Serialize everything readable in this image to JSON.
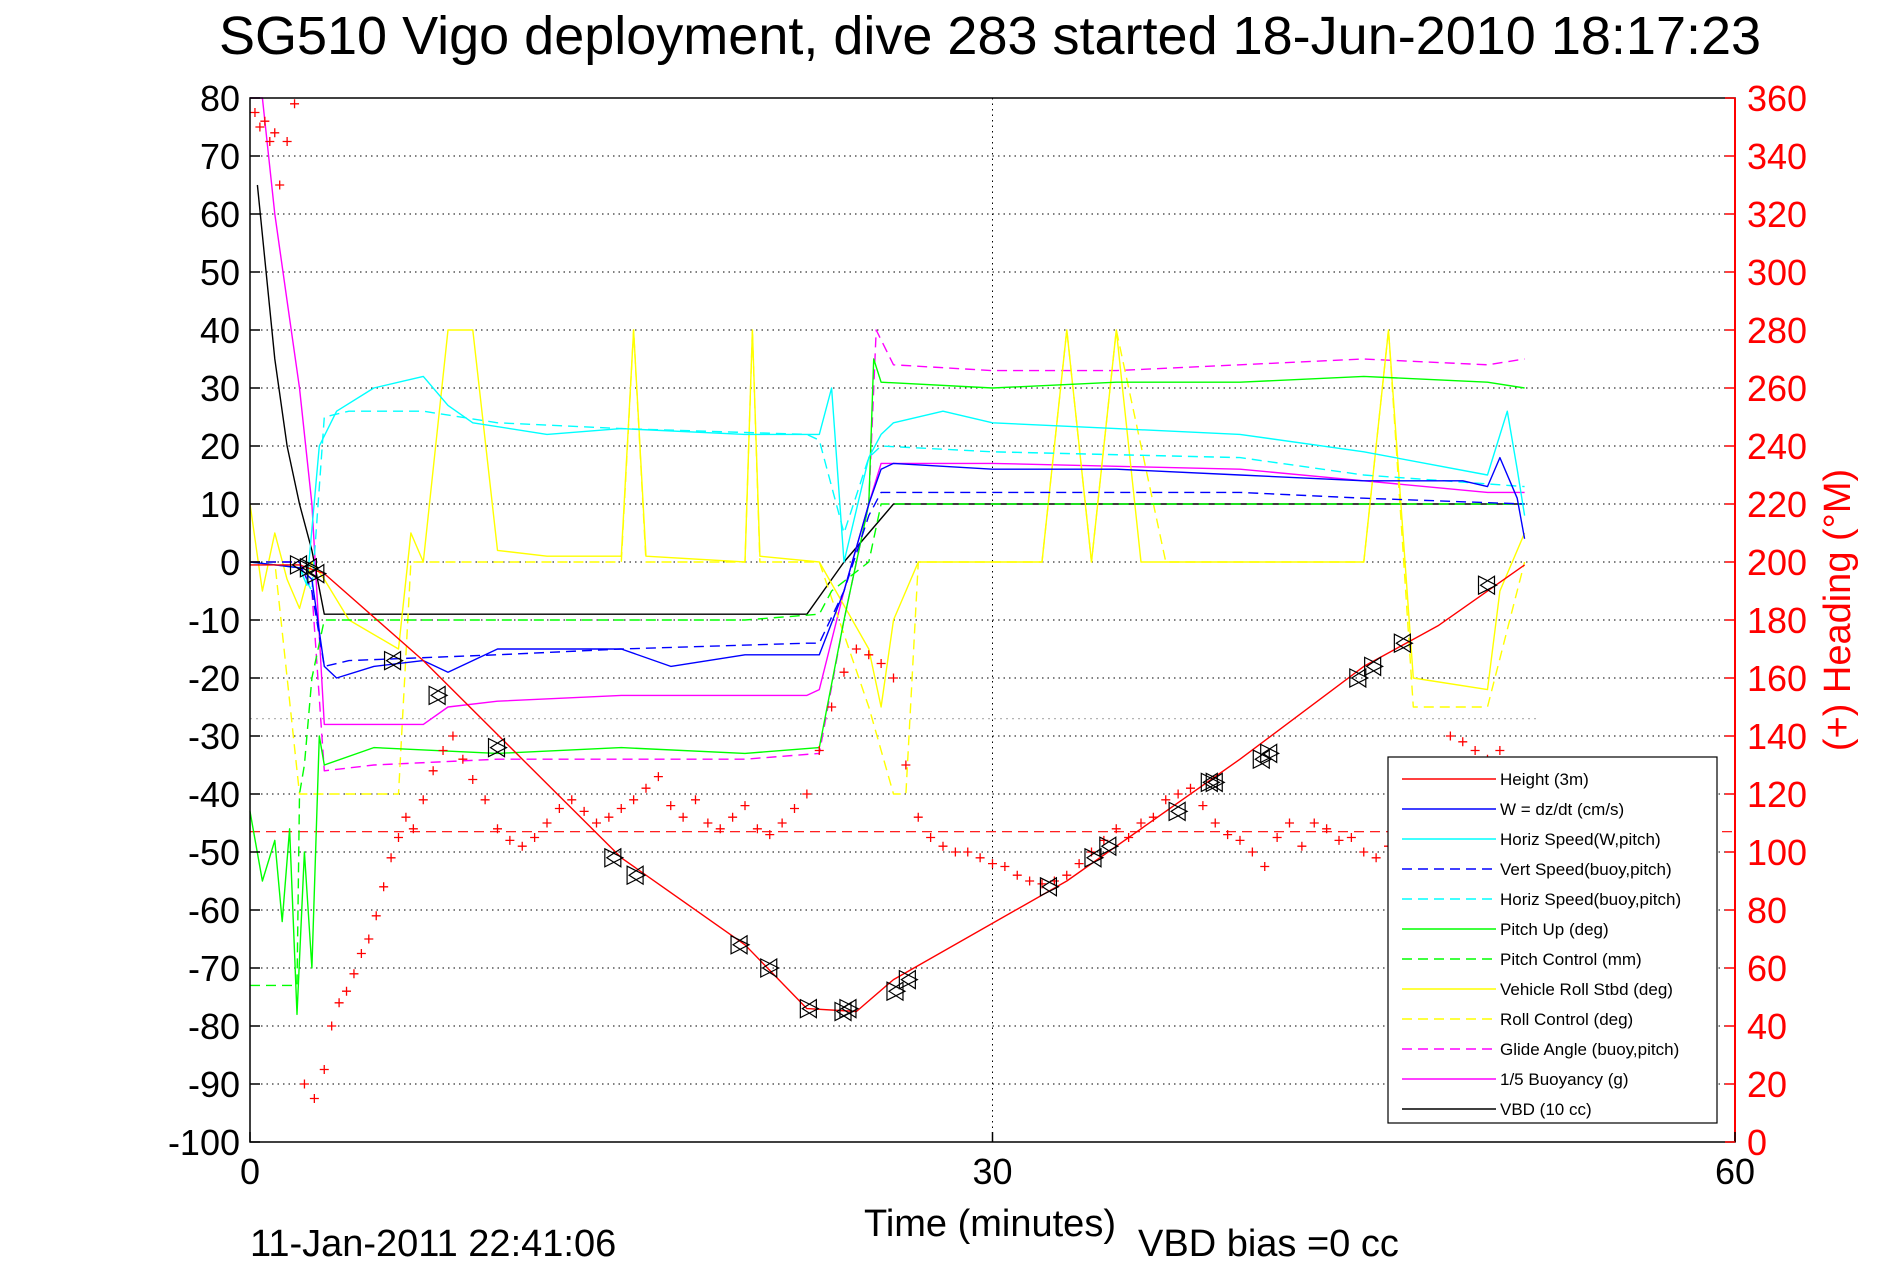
{
  "chart_data": {
    "type": "line",
    "title": "SG510 Vigo deployment, dive 283 started 18-Jun-2010 18:17:23",
    "xlabel": "Time (minutes)",
    "ylabel": "",
    "y2label": "(+) Heading (°M)",
    "xlim": [
      0,
      60
    ],
    "ylim": [
      -100,
      80
    ],
    "y2lim": [
      0,
      360
    ],
    "xticks": [
      "0",
      "30",
      "60"
    ],
    "yticks": [
      "80",
      "70",
      "60",
      "50",
      "40",
      "30",
      "20",
      "10",
      "0",
      "-10",
      "-20",
      "-30",
      "-40",
      "-50",
      "-60",
      "-70",
      "-80",
      "-90",
      "-100"
    ],
    "y2ticks": [
      "360",
      "340",
      "320",
      "300",
      "280",
      "260",
      "240",
      "220",
      "200",
      "180",
      "160",
      "140",
      "120",
      "100",
      "80",
      "60",
      "40",
      "20",
      "0"
    ],
    "grid": "dotted at x=30, all y ticks",
    "legend_position": "bottom-right",
    "footer_left": "11-Jan-2011 22:41:06",
    "footer_right": "VBD bias =0 cc",
    "reference_lines": [
      {
        "name": "heading mean (dashed red)",
        "y": -46.5,
        "color": "#ff0000",
        "style": "dashed"
      },
      {
        "name": "grey dotted",
        "y": -27,
        "color": "#b4b4b4",
        "style": "dotted",
        "x": [
          0,
          52
        ]
      }
    ],
    "series": [
      {
        "name": "Height (3m)",
        "color": "#ff0000",
        "style": "solid",
        "x": [
          0,
          2,
          3,
          7,
          15,
          20,
          22.5,
          24.5,
          26,
          33,
          40,
          45,
          48,
          51.5
        ],
        "y": [
          -0.5,
          -0.5,
          -2,
          -17,
          -51,
          -66,
          -77,
          -77.5,
          -72,
          -55,
          -34,
          -18,
          -11,
          -0.5
        ]
      },
      {
        "name": "W = dz/dt (cm/s)",
        "color": "#0000ff",
        "style": "solid",
        "x": [
          0,
          2,
          2.5,
          3,
          3.5,
          5,
          7,
          8,
          10,
          15,
          17,
          20,
          23,
          24,
          25,
          25.5,
          26,
          30,
          35,
          40,
          45,
          49,
          50,
          50.5,
          51.2,
          51.5
        ],
        "y": [
          0,
          -1,
          -3,
          -18,
          -20,
          -18,
          -17,
          -19,
          -15,
          -15,
          -18,
          -16,
          -16,
          -5,
          10,
          16,
          17,
          16,
          16,
          15,
          14,
          14,
          13,
          18,
          11,
          4
        ]
      },
      {
        "name": "Horiz Speed(W,pitch)",
        "color": "#00ffff",
        "style": "solid",
        "x": [
          0,
          2,
          2.3,
          2.8,
          3.5,
          5,
          7,
          8,
          9,
          12,
          15,
          20,
          23,
          23.5,
          24,
          25,
          25.5,
          26,
          28,
          30,
          35,
          40,
          45,
          50,
          50.8,
          51.2,
          51.5
        ],
        "y": [
          0,
          -1,
          -4,
          20,
          26,
          30,
          32,
          27,
          24,
          22,
          23,
          22,
          22,
          30,
          0,
          18,
          22,
          24,
          26,
          24,
          23,
          22,
          19,
          15,
          26,
          16,
          8
        ]
      },
      {
        "name": "Vert Speed(buoy,pitch)",
        "color": "#0000ff",
        "style": "dashed",
        "x": [
          0,
          2,
          2.5,
          3,
          4,
          10,
          15,
          22.5,
          23,
          24,
          25,
          25.5,
          30,
          40,
          45,
          51.5
        ],
        "y": [
          0,
          0,
          -5,
          -18,
          -17,
          -16,
          -15,
          -14,
          -14,
          -5,
          8,
          12,
          12,
          12,
          11,
          10
        ]
      },
      {
        "name": "Horiz Speed(buoy,pitch)",
        "color": "#00ffff",
        "style": "dashed",
        "x": [
          0,
          2,
          2.5,
          3,
          4,
          7,
          10,
          15,
          22.5,
          23,
          24,
          25,
          25.5,
          30,
          40,
          45,
          51.5
        ],
        "y": [
          0,
          -1,
          -5,
          25,
          26,
          26,
          24,
          23,
          22,
          21,
          5,
          18,
          20,
          19,
          18,
          15,
          13
        ]
      },
      {
        "name": "Pitch Up (deg)",
        "color": "#00ff00",
        "style": "solid",
        "x": [
          0,
          0.5,
          1,
          1.3,
          1.6,
          1.9,
          2.2,
          2.5,
          2.8,
          3,
          5,
          10,
          15,
          20,
          23,
          24,
          25,
          25.2,
          25.5,
          30,
          35,
          40,
          45,
          50,
          51.5
        ],
        "y": [
          -43,
          -55,
          -48,
          -62,
          -46,
          -78,
          -50,
          -70,
          -30,
          -35,
          -32,
          -33,
          -32,
          -33,
          -32,
          -10,
          10,
          35,
          31,
          30,
          31,
          31,
          32,
          31,
          30
        ]
      },
      {
        "name": "Pitch Control (mm)",
        "color": "#00ff00",
        "style": "dashed",
        "x": [
          0,
          1.9,
          2,
          2.2,
          2.5,
          3,
          10,
          20,
          23,
          23.5,
          25,
          25.5,
          30,
          51.5
        ],
        "y": [
          -73,
          -73,
          -40,
          -35,
          -20,
          -10,
          -10,
          -10,
          -9,
          -5,
          0,
          10,
          10,
          10
        ]
      },
      {
        "name": "Vehicle Roll Stbd (deg)",
        "color": "#ffff00",
        "style": "solid",
        "x": [
          0,
          0.5,
          1,
          1.5,
          2,
          2.5,
          3,
          4,
          6,
          6.5,
          7,
          8,
          9,
          10,
          12,
          15,
          15.5,
          16,
          20,
          20.3,
          20.6,
          23,
          25,
          25.5,
          26,
          27,
          28,
          30,
          32,
          33,
          34,
          35,
          36,
          37,
          38,
          40,
          45,
          46,
          47,
          50,
          50.5,
          51.5
        ],
        "y": [
          10,
          -5,
          5,
          -3,
          -8,
          0,
          -3,
          -10,
          -15,
          5,
          0,
          40,
          40,
          2,
          1,
          1,
          40,
          1,
          0,
          40,
          1,
          0,
          -15,
          -25,
          -10,
          0,
          0,
          0,
          0,
          40,
          0,
          40,
          0,
          0,
          0,
          0,
          0,
          40,
          -20,
          -22,
          -5,
          5
        ]
      },
      {
        "name": "Roll Control (deg)",
        "color": "#ffff00",
        "style": "dashed",
        "x": [
          0,
          1,
          2,
          2.5,
          3,
          6,
          6.5,
          10,
          15,
          15.5,
          16,
          20,
          20.3,
          20.6,
          23,
          25,
          26,
          26.5,
          27,
          30,
          32,
          33,
          34,
          35,
          37,
          40,
          45,
          46,
          47,
          50,
          51.5
        ],
        "y": [
          0,
          0,
          -40,
          -40,
          -40,
          -40,
          0,
          0,
          0,
          40,
          0,
          0,
          40,
          0,
          0,
          -25,
          -40,
          -40,
          0,
          0,
          0,
          40,
          0,
          40,
          0,
          0,
          0,
          40,
          -25,
          -25,
          0
        ]
      },
      {
        "name": "Glide Angle (buoy,pitch)",
        "color": "#ff00ff",
        "style": "dashed",
        "x": [
          0,
          2,
          2.5,
          3,
          5,
          10,
          15,
          20,
          23,
          24,
          25,
          25.3,
          26,
          30,
          35,
          40,
          45,
          50,
          51.5
        ],
        "y": [
          0,
          0,
          -5,
          -36,
          -35,
          -34,
          -34,
          -34,
          -33,
          -10,
          10,
          40,
          34,
          33,
          33,
          34,
          35,
          34,
          35
        ]
      },
      {
        "name": "1/5 Buoyancy (g)",
        "color": "#ff00ff",
        "style": "solid",
        "x": [
          0,
          0.5,
          1,
          1.5,
          2,
          2.5,
          3,
          5,
          7,
          8,
          10,
          15,
          22.5,
          23,
          24,
          25,
          25.5,
          30,
          40,
          45,
          50,
          51.5
        ],
        "y": [
          80,
          80,
          60,
          45,
          30,
          10,
          -28,
          -28,
          -28,
          -25,
          -24,
          -23,
          -23,
          -22,
          -5,
          10,
          17,
          17,
          16,
          14,
          12,
          12
        ]
      },
      {
        "name": "VBD (10 cc)",
        "color": "#000000",
        "style": "solid",
        "x": [
          0.3,
          1,
          1.5,
          2,
          2.5,
          3,
          5,
          10,
          15,
          22.5,
          24,
          25,
          26,
          30,
          40,
          50,
          51.5
        ],
        "y": [
          65,
          35,
          20,
          10,
          2,
          -9,
          -9,
          -9,
          -9,
          -9,
          0,
          5,
          10,
          10,
          10,
          10,
          10
        ]
      }
    ],
    "heading_markers": {
      "name": "(+) Heading",
      "color": "#ff0000",
      "y2_axis": true,
      "x": [
        0.2,
        0.4,
        0.6,
        0.8,
        1.0,
        1.2,
        1.5,
        1.8,
        2.2,
        2.6,
        3.0,
        3.3,
        3.6,
        3.9,
        4.2,
        4.5,
        4.8,
        5.1,
        5.4,
        5.7,
        6.0,
        6.3,
        6.6,
        7.0,
        7.4,
        7.8,
        8.2,
        8.6,
        9.0,
        9.5,
        10.0,
        10.5,
        11.0,
        11.5,
        12.0,
        12.5,
        13.0,
        13.5,
        14.0,
        14.5,
        15.0,
        15.5,
        16.0,
        16.5,
        17.0,
        17.5,
        18.0,
        18.5,
        19.0,
        19.5,
        20.0,
        20.5,
        21.0,
        21.5,
        22.0,
        22.5,
        23.0,
        23.5,
        24.0,
        24.5,
        25.0,
        25.5,
        26.0,
        26.5,
        27.0,
        27.5,
        28.0,
        28.5,
        29.0,
        29.5,
        30.0,
        30.5,
        31.0,
        31.5,
        32.0,
        32.5,
        33.0,
        33.5,
        34.0,
        34.5,
        35.0,
        35.5,
        36.0,
        36.5,
        37.0,
        37.5,
        38.0,
        38.5,
        39.0,
        39.5,
        40.0,
        40.5,
        41.0,
        41.5,
        42.0,
        42.5,
        43.0,
        43.5,
        44.0,
        44.5,
        45.0,
        45.5,
        46.0,
        46.5,
        47.0,
        47.5,
        48.0,
        48.5,
        49.0,
        49.5,
        50.0,
        50.5,
        51.0
      ],
      "y": [
        355,
        350,
        352,
        345,
        348,
        330,
        345,
        358,
        20,
        15,
        25,
        40,
        48,
        52,
        58,
        65,
        70,
        78,
        88,
        98,
        105,
        112,
        108,
        118,
        128,
        135,
        140,
        132,
        125,
        118,
        108,
        104,
        102,
        105,
        110,
        115,
        118,
        114,
        110,
        112,
        115,
        118,
        122,
        126,
        116,
        112,
        118,
        110,
        108,
        112,
        116,
        108,
        106,
        110,
        115,
        120,
        135,
        150,
        162,
        170,
        168,
        165,
        160,
        130,
        112,
        105,
        102,
        100,
        100,
        98,
        96,
        95,
        92,
        90,
        89,
        90,
        92,
        96,
        100,
        104,
        108,
        105,
        110,
        112,
        118,
        120,
        122,
        116,
        110,
        106,
        104,
        100,
        95,
        105,
        110,
        102,
        110,
        108,
        104,
        105,
        100,
        98,
        102,
        95,
        92,
        110,
        112,
        140,
        138,
        135,
        132,
        135,
        130
      ]
    },
    "triangle_markers": {
      "x": [
        2.0,
        2.4,
        2.7,
        5.8,
        7.6,
        10.0,
        14.7,
        15.6,
        19.8,
        21.0,
        22.6,
        24.0,
        24.2,
        26.1,
        26.6,
        32.3,
        34.1,
        34.7,
        37.5,
        38.8,
        39.0,
        40.9,
        41.2,
        44.8,
        45.4,
        46.6,
        50.0
      ],
      "y": [
        -0.5,
        -1,
        -2,
        -17,
        -23,
        -32,
        -51,
        -54,
        -66,
        -70,
        -77,
        -77.5,
        -77,
        -74,
        -72,
        -56,
        -51,
        -49,
        -43,
        -38,
        -38,
        -34,
        -33,
        -20,
        -18,
        -14,
        -4
      ]
    }
  },
  "legend": {
    "items": [
      {
        "label": "Height (3m)",
        "color": "#ff0000",
        "style": "solid"
      },
      {
        "label": "W = dz/dt (cm/s)",
        "color": "#0000ff",
        "style": "solid"
      },
      {
        "label": "Horiz Speed(W,pitch)",
        "color": "#00ffff",
        "style": "solid"
      },
      {
        "label": "Vert Speed(buoy,pitch)",
        "color": "#0000ff",
        "style": "dashed"
      },
      {
        "label": "Horiz Speed(buoy,pitch)",
        "color": "#00ffff",
        "style": "dashed"
      },
      {
        "label": "Pitch Up (deg)",
        "color": "#00ff00",
        "style": "solid"
      },
      {
        "label": "Pitch Control (mm)",
        "color": "#00ff00",
        "style": "dashed"
      },
      {
        "label": "Vehicle Roll Stbd (deg)",
        "color": "#ffff00",
        "style": "solid"
      },
      {
        "label": "Roll Control (deg)",
        "color": "#ffff00",
        "style": "dashed"
      },
      {
        "label": "Glide Angle (buoy,pitch)",
        "color": "#ff00ff",
        "style": "dashed"
      },
      {
        "label": "1/5 Buoyancy (g)",
        "color": "#ff00ff",
        "style": "solid"
      },
      {
        "label": "VBD (10 cc)",
        "color": "#000000",
        "style": "solid"
      }
    ]
  }
}
